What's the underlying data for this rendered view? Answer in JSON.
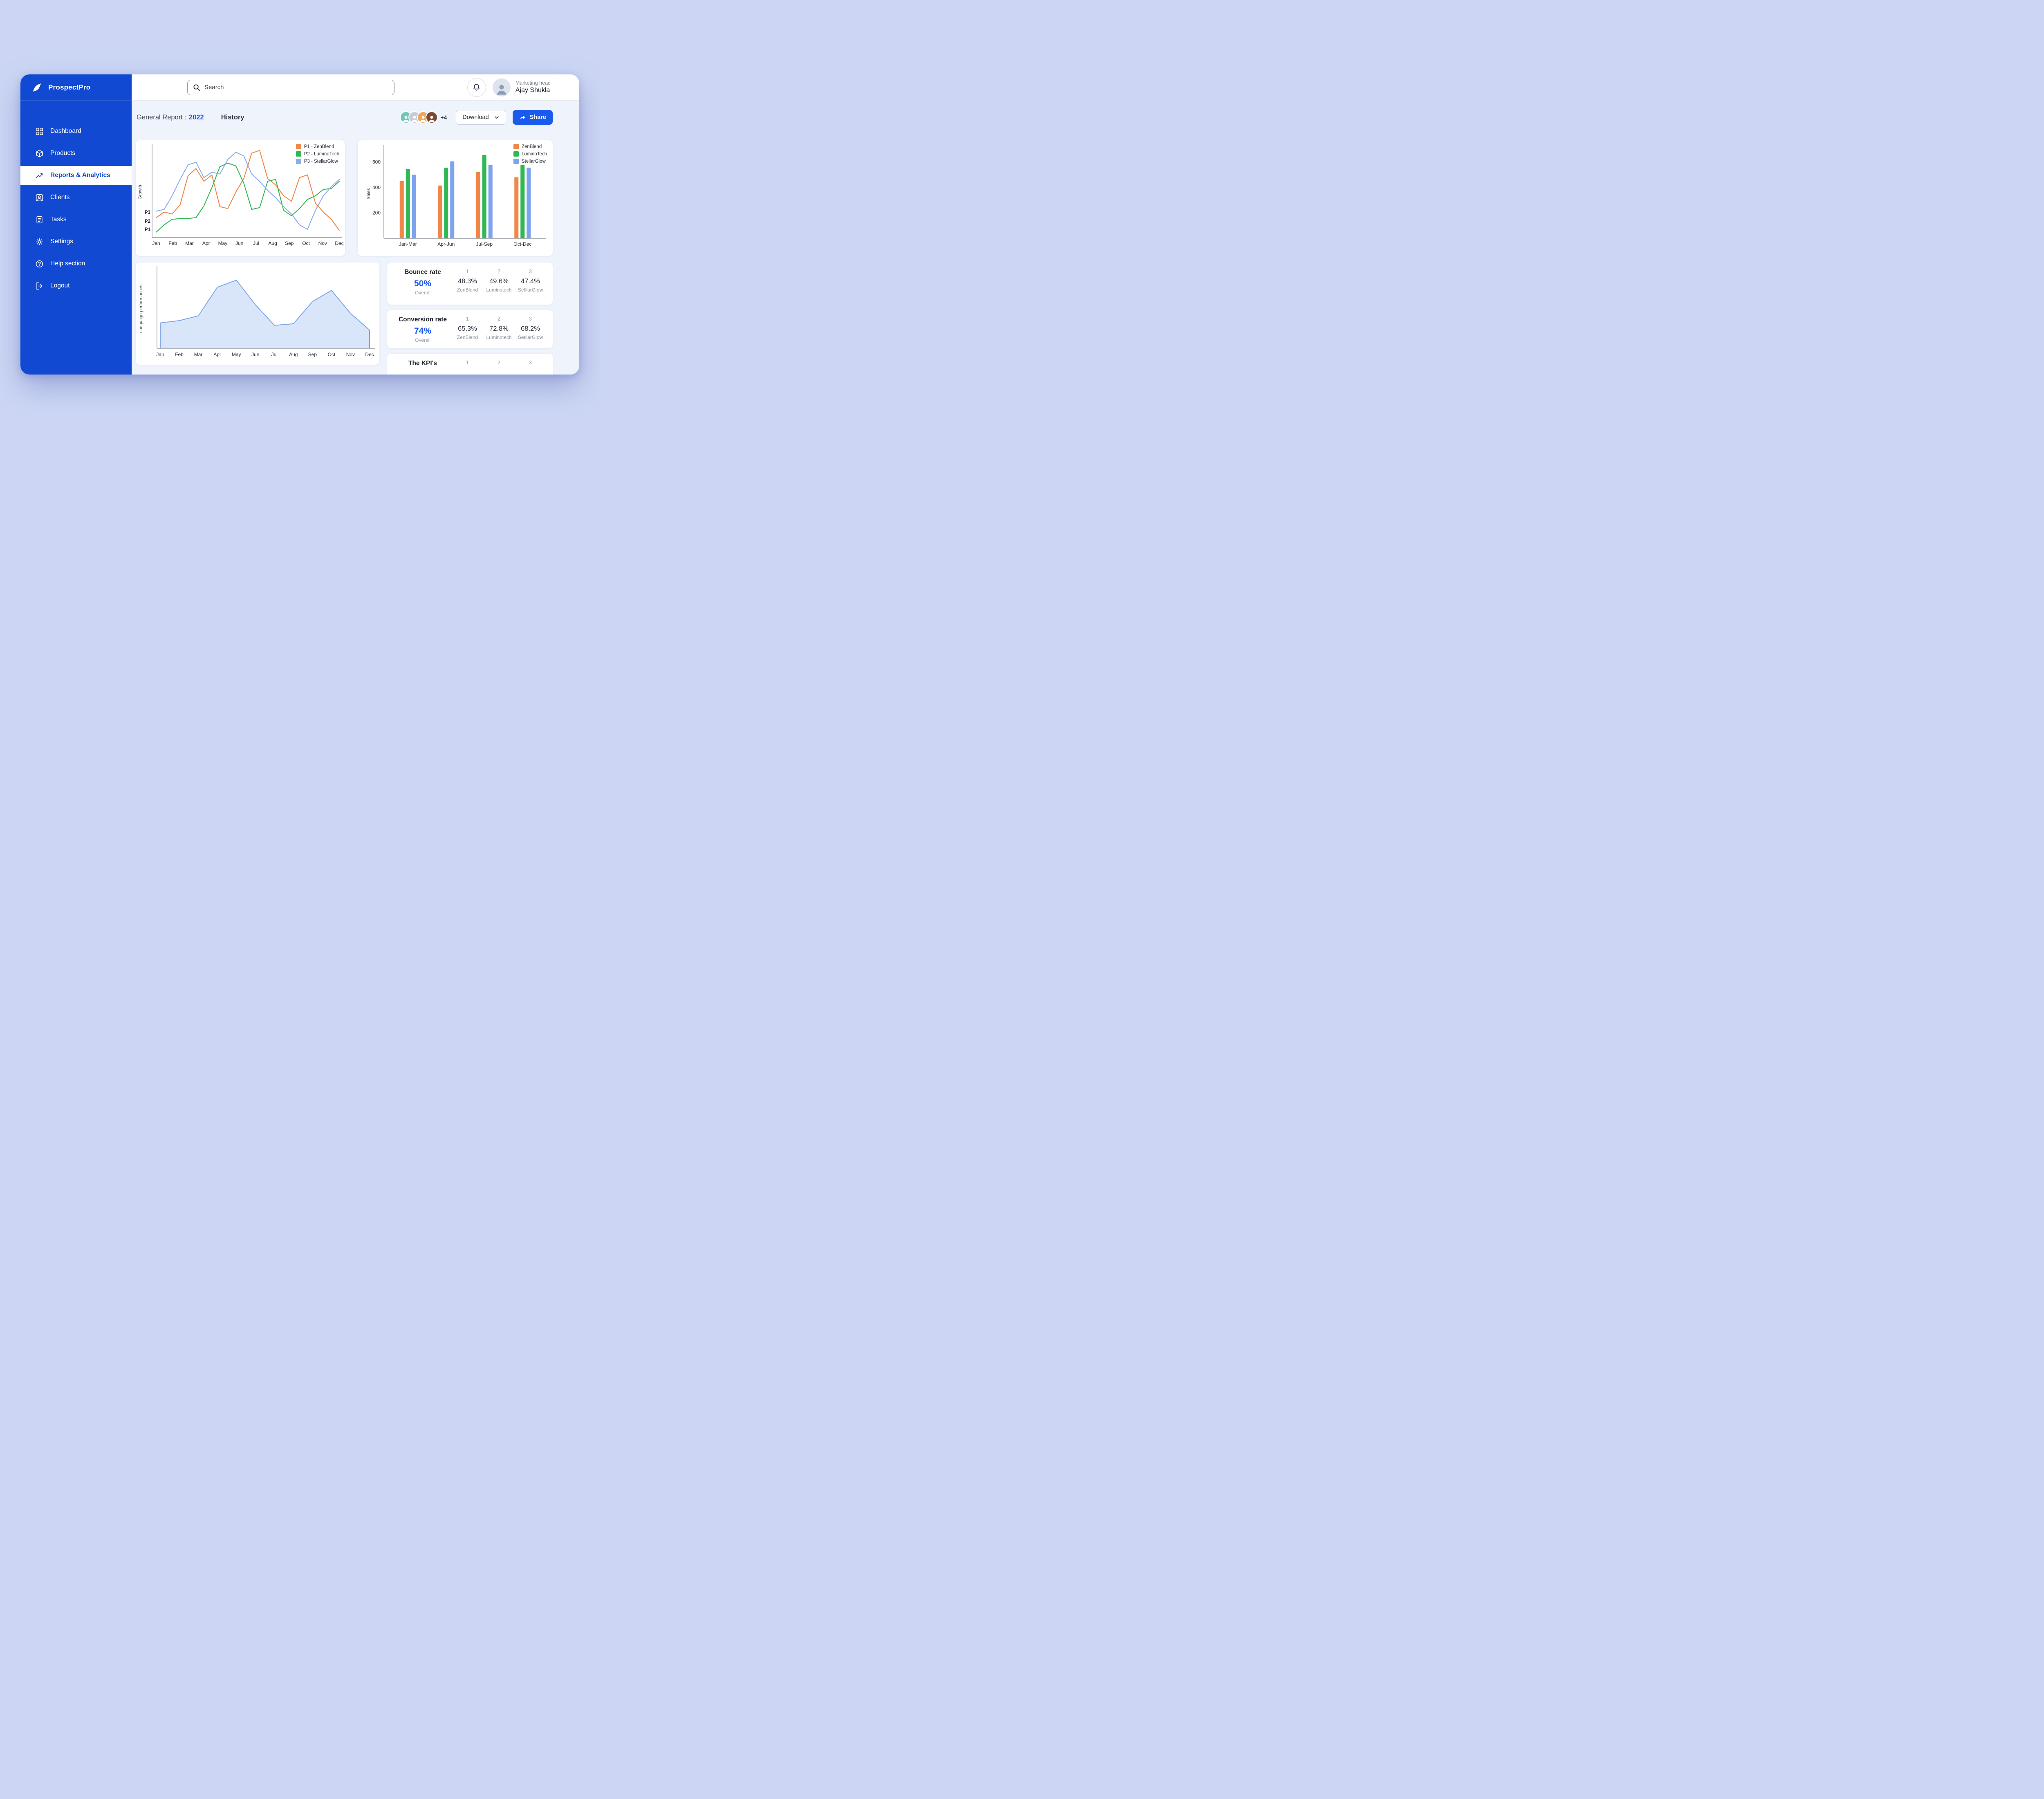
{
  "app": {
    "name": "ProspectPro"
  },
  "colors": {
    "sidebar-blue": "#1149D2",
    "accent-blue": "#1A5AEC",
    "content-bg": "#EFF3FB"
  },
  "topbar": {
    "search_placeholder": "Search",
    "user_role": "Marketing head",
    "user_name": "Ajay Shukla"
  },
  "sidebar": {
    "items": [
      {
        "label": "Dashboard"
      },
      {
        "label": "Products"
      },
      {
        "label": "Reports & Analytics"
      },
      {
        "label": "Clients"
      },
      {
        "label": "Tasks"
      },
      {
        "label": "Settings"
      },
      {
        "label": "Help section"
      },
      {
        "label": "Logout"
      }
    ]
  },
  "header": {
    "report_label": "General Report :",
    "report_year": "2022",
    "history_label": "History",
    "avatar_overflow": "+4",
    "download_label": "Download",
    "share_label": "Share"
  },
  "chart_data": [
    {
      "type": "line",
      "ylabel": "Growth",
      "x_labels": [
        "Jan",
        "Feb",
        "Mar",
        "Apr",
        "May",
        "Jun",
        "Jul",
        "Aug",
        "Sep",
        "Oct",
        "Nov",
        "Dec"
      ],
      "y_tick_labels": [
        "P1",
        "P2",
        "P3"
      ],
      "y_tick_values": [
        0.9,
        1.8,
        2.8
      ],
      "ylim": [
        0,
        10
      ],
      "legend_position": "top-right",
      "series": [
        {
          "name": "P1 - ZenBlend",
          "color": "#F08647",
          "values": [
            2.2,
            2.8,
            2.6,
            3.6,
            6.8,
            7.6,
            6.2,
            6.9,
            3.4,
            3.2,
            5.0,
            6.5,
            9.3,
            9.6,
            6.5,
            5.8,
            4.6,
            4.0,
            6.6,
            6.9,
            3.8,
            2.8,
            2.0,
            0.8
          ]
        },
        {
          "name": "P2 - LuminoTech",
          "color": "#2FB853",
          "values": [
            0.6,
            1.4,
            2.0,
            2.1,
            2.1,
            2.2,
            3.5,
            5.5,
            7.8,
            8.2,
            7.9,
            6.0,
            3.1,
            3.3,
            6.2,
            6.4,
            3.0,
            2.4,
            3.2,
            4.2,
            4.6,
            5.3,
            5.4,
            6.2
          ]
        },
        {
          "name": "P3 - StellarGlow",
          "color": "#8AACF0",
          "values": [
            2.9,
            3.1,
            4.6,
            6.4,
            8.0,
            8.3,
            6.6,
            7.2,
            7.0,
            8.6,
            9.4,
            9.0,
            7.0,
            6.2,
            5.2,
            4.4,
            3.4,
            2.6,
            1.4,
            0.9,
            3.0,
            4.6,
            5.6,
            6.4
          ]
        }
      ]
    },
    {
      "type": "bar",
      "ylabel": "Sales",
      "categories": [
        "Jan-Mar",
        "Apr-Jun",
        "Jul-Sep",
        "Oct-Dec"
      ],
      "y_ticks": [
        200,
        400,
        600
      ],
      "ylim": [
        0,
        700
      ],
      "legend_position": "top-right",
      "series": [
        {
          "name": "ZenBlend",
          "color": "#F08647",
          "values": [
            450,
            415,
            520,
            480
          ]
        },
        {
          "name": "LuminoTech",
          "color": "#2FB853",
          "values": [
            545,
            555,
            655,
            575
          ]
        },
        {
          "name": "StellarGlow",
          "color": "#7DA3EF",
          "values": [
            500,
            605,
            575,
            555
          ]
        }
      ]
    },
    {
      "type": "area",
      "ylabel": "campaign performances",
      "x_labels": [
        "Jan",
        "Feb",
        "Mar",
        "Apr",
        "May",
        "Jun",
        "Jul",
        "Aug",
        "Sep",
        "Oct",
        "Nov",
        "Dec"
      ],
      "ylim": [
        0,
        10
      ],
      "fill_color": "#D9E6FA",
      "line_color": "#7AA4EA",
      "values": [
        3.2,
        3.5,
        4.1,
        7.7,
        8.6,
        5.5,
        2.9,
        3.1,
        5.9,
        7.3,
        4.4,
        2.3
      ]
    }
  ],
  "stats": [
    {
      "title": "Bounce rate",
      "overall_value": "50%",
      "overall_label": "Overall",
      "items": [
        {
          "rank": "1",
          "value": "48.3%",
          "name": "ZenBlend"
        },
        {
          "rank": "2",
          "value": "49.6%",
          "name": "Luminotech"
        },
        {
          "rank": "3",
          "value": "47.4%",
          "name": "SetllarGlow"
        }
      ]
    },
    {
      "title": "Conversion rate",
      "overall_value": "74%",
      "overall_label": "Overall",
      "items": [
        {
          "rank": "1",
          "value": "65.3%",
          "name": "ZenBlend"
        },
        {
          "rank": "2",
          "value": "72.8%",
          "name": "Luminotech"
        },
        {
          "rank": "3",
          "value": "68.2%",
          "name": "SetllarGlow"
        }
      ]
    },
    {
      "title": "The KPI's",
      "overall_value": "",
      "overall_label": "",
      "items": [
        {
          "rank": "1",
          "value": "",
          "name": ""
        },
        {
          "rank": "2",
          "value": "",
          "name": ""
        },
        {
          "rank": "3",
          "value": "",
          "name": ""
        }
      ]
    }
  ]
}
